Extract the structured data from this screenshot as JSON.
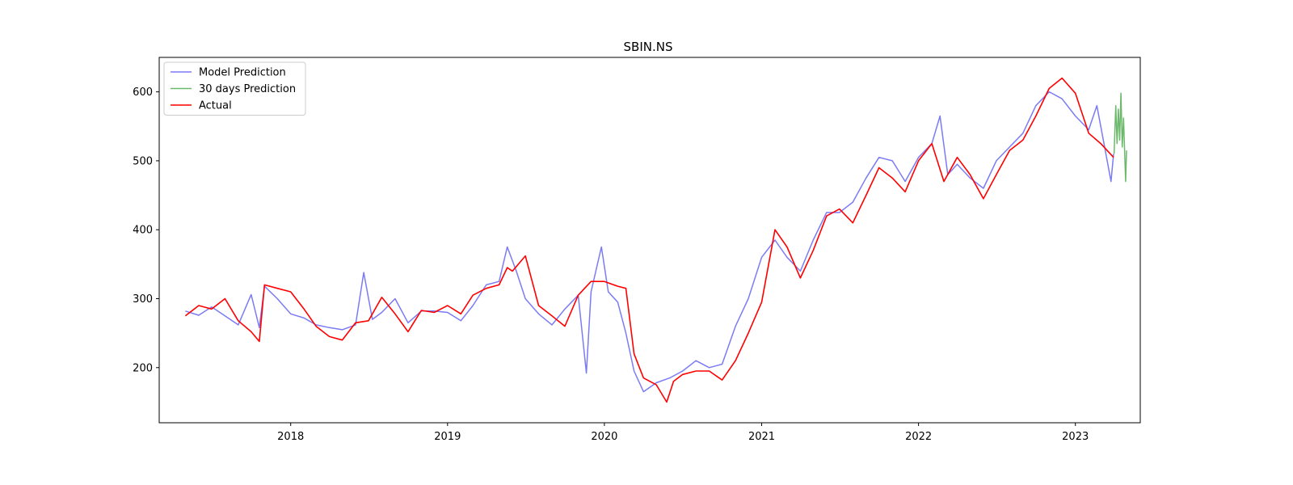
{
  "chart_data": {
    "type": "line",
    "title": "SBIN.NS",
    "xlabel": "",
    "ylabel": "",
    "x_axis_type": "date",
    "xlim": [
      "2017-03-01",
      "2023-06-01"
    ],
    "ylim": [
      120,
      650
    ],
    "x_ticks": [
      {
        "value": "2018-01-01",
        "label": "2018"
      },
      {
        "value": "2019-01-01",
        "label": "2019"
      },
      {
        "value": "2020-01-01",
        "label": "2020"
      },
      {
        "value": "2021-01-01",
        "label": "2021"
      },
      {
        "value": "2022-01-01",
        "label": "2022"
      },
      {
        "value": "2023-01-01",
        "label": "2023"
      }
    ],
    "y_ticks": [
      200,
      300,
      400,
      500,
      600
    ],
    "grid": false,
    "legend_position": "top-left",
    "series": [
      {
        "name": "Model Prediction",
        "color": "#7b7bf5",
        "points": [
          [
            "2017-05-01",
            282
          ],
          [
            "2017-06-01",
            276
          ],
          [
            "2017-07-01",
            288
          ],
          [
            "2017-08-01",
            275
          ],
          [
            "2017-09-01",
            262
          ],
          [
            "2017-10-01",
            306
          ],
          [
            "2017-10-20",
            258
          ],
          [
            "2017-11-01",
            318
          ],
          [
            "2017-12-01",
            300
          ],
          [
            "2018-01-01",
            278
          ],
          [
            "2018-02-01",
            272
          ],
          [
            "2018-03-01",
            262
          ],
          [
            "2018-04-01",
            258
          ],
          [
            "2018-05-01",
            255
          ],
          [
            "2018-06-01",
            262
          ],
          [
            "2018-06-20",
            338
          ],
          [
            "2018-07-10",
            270
          ],
          [
            "2018-08-01",
            280
          ],
          [
            "2018-09-01",
            300
          ],
          [
            "2018-10-01",
            265
          ],
          [
            "2018-11-01",
            282
          ],
          [
            "2018-12-01",
            282
          ],
          [
            "2019-01-01",
            280
          ],
          [
            "2019-02-01",
            268
          ],
          [
            "2019-03-01",
            290
          ],
          [
            "2019-04-01",
            320
          ],
          [
            "2019-05-01",
            325
          ],
          [
            "2019-05-20",
            375
          ],
          [
            "2019-06-10",
            340
          ],
          [
            "2019-07-01",
            300
          ],
          [
            "2019-08-01",
            278
          ],
          [
            "2019-09-01",
            262
          ],
          [
            "2019-10-01",
            285
          ],
          [
            "2019-11-01",
            305
          ],
          [
            "2019-11-20",
            192
          ],
          [
            "2019-12-01",
            310
          ],
          [
            "2019-12-25",
            375
          ],
          [
            "2020-01-10",
            310
          ],
          [
            "2020-02-01",
            295
          ],
          [
            "2020-02-20",
            250
          ],
          [
            "2020-03-10",
            195
          ],
          [
            "2020-04-01",
            165
          ],
          [
            "2020-05-01",
            178
          ],
          [
            "2020-06-01",
            185
          ],
          [
            "2020-07-01",
            195
          ],
          [
            "2020-08-01",
            210
          ],
          [
            "2020-09-01",
            200
          ],
          [
            "2020-10-01",
            205
          ],
          [
            "2020-11-01",
            260
          ],
          [
            "2020-12-01",
            300
          ],
          [
            "2021-01-01",
            360
          ],
          [
            "2021-02-01",
            385
          ],
          [
            "2021-03-01",
            360
          ],
          [
            "2021-04-01",
            340
          ],
          [
            "2021-05-01",
            385
          ],
          [
            "2021-06-01",
            425
          ],
          [
            "2021-07-01",
            425
          ],
          [
            "2021-08-01",
            440
          ],
          [
            "2021-09-01",
            475
          ],
          [
            "2021-10-01",
            505
          ],
          [
            "2021-11-01",
            500
          ],
          [
            "2021-12-01",
            470
          ],
          [
            "2022-01-01",
            505
          ],
          [
            "2022-02-01",
            525
          ],
          [
            "2022-02-20",
            565
          ],
          [
            "2022-03-10",
            480
          ],
          [
            "2022-04-01",
            495
          ],
          [
            "2022-05-01",
            475
          ],
          [
            "2022-06-01",
            460
          ],
          [
            "2022-07-01",
            500
          ],
          [
            "2022-08-01",
            520
          ],
          [
            "2022-09-01",
            540
          ],
          [
            "2022-10-01",
            580
          ],
          [
            "2022-11-01",
            600
          ],
          [
            "2022-12-01",
            590
          ],
          [
            "2023-01-01",
            565
          ],
          [
            "2023-02-01",
            545
          ],
          [
            "2023-02-20",
            580
          ],
          [
            "2023-03-10",
            520
          ],
          [
            "2023-03-25",
            470
          ],
          [
            "2023-03-31",
            510
          ]
        ]
      },
      {
        "name": "30 days Prediction",
        "color": "#6cb96c",
        "points": [
          [
            "2023-04-01",
            510
          ],
          [
            "2023-04-05",
            580
          ],
          [
            "2023-04-08",
            525
          ],
          [
            "2023-04-11",
            575
          ],
          [
            "2023-04-14",
            530
          ],
          [
            "2023-04-17",
            598
          ],
          [
            "2023-04-20",
            520
          ],
          [
            "2023-04-23",
            562
          ],
          [
            "2023-04-26",
            505
          ],
          [
            "2023-04-28",
            470
          ],
          [
            "2023-04-30",
            515
          ]
        ]
      },
      {
        "name": "Actual",
        "color": "#ff0000",
        "points": [
          [
            "2017-05-01",
            275
          ],
          [
            "2017-06-01",
            290
          ],
          [
            "2017-07-01",
            285
          ],
          [
            "2017-08-01",
            300
          ],
          [
            "2017-09-01",
            268
          ],
          [
            "2017-10-01",
            252
          ],
          [
            "2017-10-20",
            238
          ],
          [
            "2017-11-01",
            320
          ],
          [
            "2017-12-01",
            315
          ],
          [
            "2018-01-01",
            310
          ],
          [
            "2018-02-01",
            285
          ],
          [
            "2018-03-01",
            260
          ],
          [
            "2018-04-01",
            245
          ],
          [
            "2018-05-01",
            240
          ],
          [
            "2018-06-01",
            265
          ],
          [
            "2018-07-01",
            268
          ],
          [
            "2018-08-01",
            302
          ],
          [
            "2018-09-01",
            278
          ],
          [
            "2018-10-01",
            252
          ],
          [
            "2018-11-01",
            283
          ],
          [
            "2018-12-01",
            280
          ],
          [
            "2019-01-01",
            290
          ],
          [
            "2019-02-01",
            278
          ],
          [
            "2019-03-01",
            305
          ],
          [
            "2019-04-01",
            315
          ],
          [
            "2019-05-01",
            320
          ],
          [
            "2019-05-20",
            345
          ],
          [
            "2019-06-01",
            340
          ],
          [
            "2019-07-01",
            362
          ],
          [
            "2019-08-01",
            290
          ],
          [
            "2019-09-01",
            275
          ],
          [
            "2019-10-01",
            260
          ],
          [
            "2019-11-01",
            305
          ],
          [
            "2019-12-01",
            325
          ],
          [
            "2020-01-01",
            325
          ],
          [
            "2020-02-01",
            318
          ],
          [
            "2020-02-20",
            315
          ],
          [
            "2020-03-10",
            220
          ],
          [
            "2020-04-01",
            185
          ],
          [
            "2020-05-01",
            175
          ],
          [
            "2020-05-25",
            150
          ],
          [
            "2020-06-10",
            180
          ],
          [
            "2020-07-01",
            190
          ],
          [
            "2020-08-01",
            195
          ],
          [
            "2020-09-01",
            195
          ],
          [
            "2020-10-01",
            182
          ],
          [
            "2020-11-01",
            210
          ],
          [
            "2020-12-01",
            250
          ],
          [
            "2021-01-01",
            295
          ],
          [
            "2021-02-01",
            400
          ],
          [
            "2021-03-01",
            375
          ],
          [
            "2021-04-01",
            330
          ],
          [
            "2021-05-01",
            370
          ],
          [
            "2021-06-01",
            420
          ],
          [
            "2021-07-01",
            430
          ],
          [
            "2021-08-01",
            410
          ],
          [
            "2021-09-01",
            450
          ],
          [
            "2021-10-01",
            490
          ],
          [
            "2021-11-01",
            475
          ],
          [
            "2021-12-01",
            455
          ],
          [
            "2022-01-01",
            500
          ],
          [
            "2022-02-01",
            525
          ],
          [
            "2022-03-01",
            470
          ],
          [
            "2022-04-01",
            505
          ],
          [
            "2022-05-01",
            480
          ],
          [
            "2022-06-01",
            445
          ],
          [
            "2022-07-01",
            480
          ],
          [
            "2022-08-01",
            515
          ],
          [
            "2022-09-01",
            530
          ],
          [
            "2022-10-01",
            565
          ],
          [
            "2022-11-01",
            605
          ],
          [
            "2022-12-01",
            620
          ],
          [
            "2023-01-01",
            598
          ],
          [
            "2023-02-01",
            540
          ],
          [
            "2023-03-01",
            525
          ],
          [
            "2023-03-31",
            505
          ]
        ]
      }
    ]
  }
}
